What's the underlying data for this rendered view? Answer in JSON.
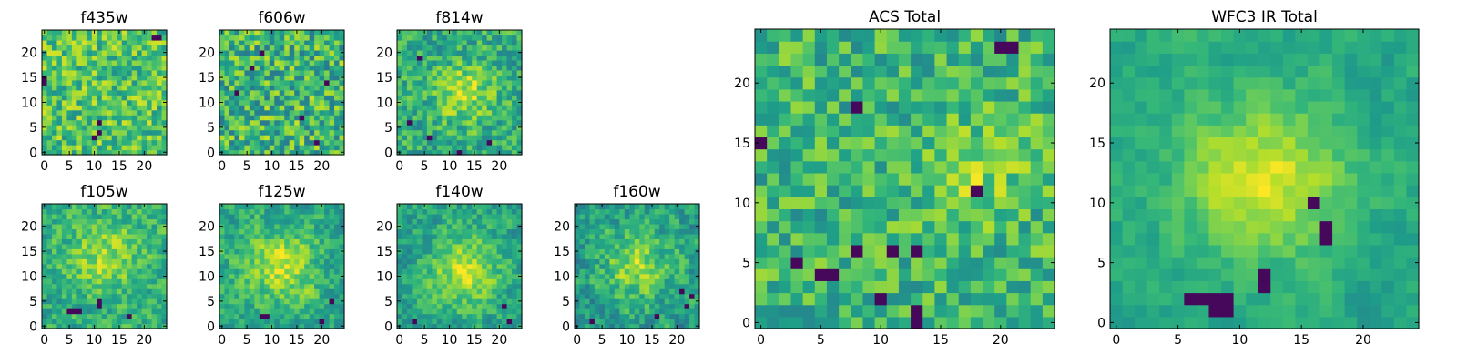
{
  "chart_data": [
    {
      "type": "heatmap",
      "title": "f435w",
      "xticks": [
        "0",
        "5",
        "10",
        "15",
        "20"
      ],
      "yticks": [
        "0",
        "5",
        "10",
        "15",
        "20"
      ],
      "xlim": [
        -0.5,
        24.5
      ],
      "ylim": [
        -0.5,
        24.5
      ],
      "size": 25,
      "colormap": "viridis",
      "vmin": 0,
      "vmax": 1,
      "grid": false,
      "seed": 11,
      "smooth": 0.0,
      "base": 0.72,
      "noise": 0.22,
      "blob": {
        "x": 12,
        "y": 12,
        "sigma": 6,
        "amp": 0.0
      },
      "dark": [
        [
          10,
          3
        ],
        [
          11,
          4
        ],
        [
          11,
          6
        ],
        [
          0,
          14
        ],
        [
          0,
          15
        ],
        [
          23,
          23
        ],
        [
          22,
          23
        ]
      ]
    },
    {
      "type": "heatmap",
      "title": "f606w",
      "xticks": [
        "0",
        "5",
        "10",
        "15",
        "20"
      ],
      "yticks": [
        "0",
        "5",
        "10",
        "15",
        "20"
      ],
      "xlim": [
        -0.5,
        24.5
      ],
      "ylim": [
        -0.5,
        24.5
      ],
      "size": 25,
      "colormap": "viridis",
      "vmin": 0,
      "vmax": 1,
      "grid": false,
      "seed": 23,
      "smooth": 0.0,
      "base": 0.66,
      "noise": 0.26,
      "blob": {
        "x": 12,
        "y": 12,
        "sigma": 6,
        "amp": 0.0
      },
      "dark": [
        [
          3,
          12
        ],
        [
          8,
          20
        ],
        [
          16,
          7
        ],
        [
          19,
          2
        ],
        [
          6,
          17
        ],
        [
          21,
          14
        ]
      ]
    },
    {
      "type": "heatmap",
      "title": "f814w",
      "xticks": [
        "0",
        "5",
        "10",
        "15",
        "20"
      ],
      "yticks": [
        "0",
        "5",
        "10",
        "15",
        "20"
      ],
      "xlim": [
        -0.5,
        24.5
      ],
      "ylim": [
        -0.5,
        24.5
      ],
      "size": 25,
      "colormap": "viridis",
      "vmin": 0,
      "vmax": 1,
      "grid": false,
      "seed": 37,
      "smooth": 0.2,
      "base": 0.62,
      "noise": 0.22,
      "blob": {
        "x": 13,
        "y": 12,
        "sigma": 4,
        "amp": 0.28
      },
      "dark": [
        [
          12,
          0
        ],
        [
          6,
          3
        ],
        [
          2,
          6
        ],
        [
          18,
          2
        ],
        [
          4,
          19
        ]
      ]
    },
    {
      "type": "heatmap",
      "title": "f105w",
      "xticks": [
        "0",
        "5",
        "10",
        "15",
        "20"
      ],
      "yticks": [
        "0",
        "5",
        "10",
        "15",
        "20"
      ],
      "xlim": [
        -0.5,
        24.5
      ],
      "ylim": [
        -0.5,
        24.5
      ],
      "size": 25,
      "colormap": "viridis",
      "vmin": 0,
      "vmax": 1,
      "grid": false,
      "seed": 41,
      "smooth": 0.35,
      "base": 0.62,
      "noise": 0.22,
      "blob": {
        "x": 12,
        "y": 14,
        "sigma": 5,
        "amp": 0.25
      },
      "dark": [
        [
          5,
          3
        ],
        [
          6,
          3
        ],
        [
          7,
          3
        ],
        [
          11,
          4
        ],
        [
          11,
          5
        ],
        [
          17,
          2
        ]
      ]
    },
    {
      "type": "heatmap",
      "title": "f125w",
      "xticks": [
        "0",
        "5",
        "10",
        "15",
        "20"
      ],
      "yticks": [
        "0",
        "5",
        "10",
        "15",
        "20"
      ],
      "xlim": [
        -0.5,
        24.5
      ],
      "ylim": [
        -0.5,
        24.5
      ],
      "size": 25,
      "colormap": "viridis",
      "vmin": 0,
      "vmax": 1,
      "grid": false,
      "seed": 53,
      "smooth": 0.4,
      "base": 0.6,
      "noise": 0.22,
      "blob": {
        "x": 12,
        "y": 12,
        "sigma": 5,
        "amp": 0.3
      },
      "dark": [
        [
          8,
          2
        ],
        [
          9,
          2
        ],
        [
          20,
          1
        ],
        [
          22,
          5
        ]
      ]
    },
    {
      "type": "heatmap",
      "title": "f140w",
      "xticks": [
        "0",
        "5",
        "10",
        "15",
        "20"
      ],
      "yticks": [
        "0",
        "5",
        "10",
        "15",
        "20"
      ],
      "xlim": [
        -0.5,
        24.5
      ],
      "ylim": [
        -0.5,
        24.5
      ],
      "size": 25,
      "colormap": "viridis",
      "vmin": 0,
      "vmax": 1,
      "grid": false,
      "seed": 67,
      "smooth": 0.45,
      "base": 0.58,
      "noise": 0.22,
      "blob": {
        "x": 13,
        "y": 11,
        "sigma": 5,
        "amp": 0.32
      },
      "dark": [
        [
          21,
          4
        ],
        [
          22,
          1
        ],
        [
          3,
          1
        ]
      ]
    },
    {
      "type": "heatmap",
      "title": "f160w",
      "xticks": [
        "0",
        "5",
        "10",
        "15",
        "20"
      ],
      "yticks": [
        "0",
        "5",
        "10",
        "15",
        "20"
      ],
      "xlim": [
        -0.5,
        24.5
      ],
      "ylim": [
        -0.5,
        24.5
      ],
      "size": 25,
      "colormap": "viridis",
      "vmin": 0,
      "vmax": 1,
      "grid": false,
      "seed": 79,
      "smooth": 0.4,
      "base": 0.55,
      "noise": 0.24,
      "blob": {
        "x": 12,
        "y": 12,
        "sigma": 5,
        "amp": 0.3
      },
      "dark": [
        [
          23,
          6
        ],
        [
          22,
          4
        ],
        [
          21,
          7
        ],
        [
          16,
          2
        ],
        [
          3,
          1
        ]
      ]
    },
    {
      "type": "heatmap",
      "title": "ACS Total",
      "xticks": [
        "0",
        "5",
        "10",
        "15",
        "20"
      ],
      "yticks": [
        "0",
        "5",
        "10",
        "15",
        "20"
      ],
      "xlim": [
        -0.5,
        24.5
      ],
      "ylim": [
        -0.5,
        24.5
      ],
      "size": 25,
      "colormap": "viridis",
      "vmin": 0,
      "vmax": 1,
      "grid": false,
      "seed": 97,
      "smooth": 0.05,
      "base": 0.66,
      "noise": 0.2,
      "blob": {
        "x": 18,
        "y": 13,
        "sigma": 3,
        "amp": 0.15
      },
      "dark": [
        [
          20,
          23
        ],
        [
          21,
          23
        ],
        [
          8,
          18
        ],
        [
          8,
          6
        ],
        [
          11,
          6
        ],
        [
          13,
          6
        ],
        [
          3,
          5
        ],
        [
          5,
          4
        ],
        [
          6,
          4
        ],
        [
          10,
          2
        ],
        [
          13,
          1
        ],
        [
          13,
          0
        ],
        [
          18,
          11
        ],
        [
          0,
          15
        ]
      ]
    },
    {
      "type": "heatmap",
      "title": "WFC3 IR Total",
      "xticks": [
        "0",
        "5",
        "10",
        "15",
        "20"
      ],
      "yticks": [
        "0",
        "5",
        "10",
        "15",
        "20"
      ],
      "xlim": [
        -0.5,
        24.5
      ],
      "ylim": [
        -0.5,
        24.5
      ],
      "size": 25,
      "colormap": "viridis",
      "vmin": 0,
      "vmax": 1,
      "grid": false,
      "seed": 131,
      "smooth": 0.55,
      "base": 0.6,
      "noise": 0.14,
      "blob": {
        "x": 12,
        "y": 12,
        "sigma": 4.5,
        "amp": 0.35
      },
      "dark": [
        [
          6,
          2
        ],
        [
          7,
          2
        ],
        [
          8,
          2
        ],
        [
          9,
          2
        ],
        [
          8,
          1
        ],
        [
          9,
          1
        ],
        [
          12,
          4
        ],
        [
          12,
          3
        ],
        [
          17,
          7
        ],
        [
          17,
          8
        ],
        [
          16,
          10
        ]
      ]
    }
  ]
}
